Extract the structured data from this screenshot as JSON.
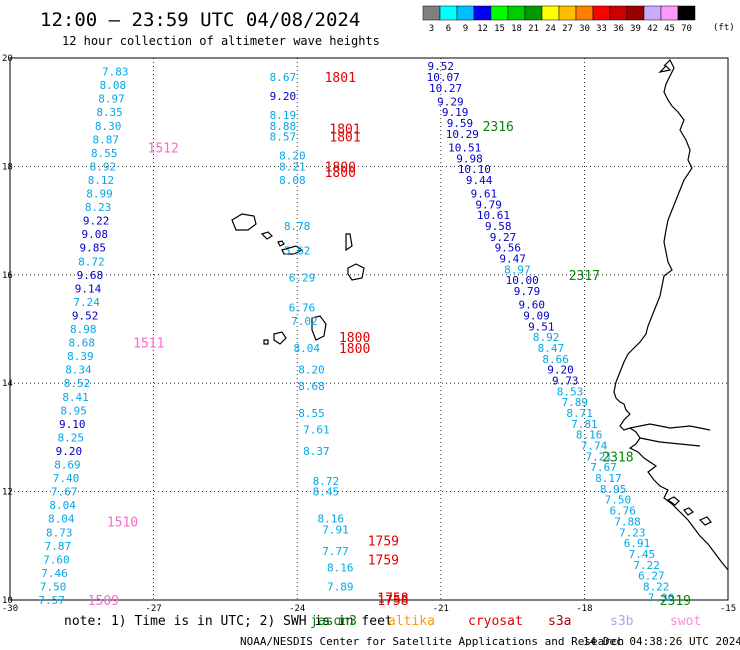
{
  "header": {
    "title": "12:00 – 23:59 UTC 04/08/2024",
    "subtitle": "12 hour collection of altimeter wave heights"
  },
  "colorbar": {
    "colors": [
      "#808080",
      "#00ffff",
      "#00bfff",
      "#0000ff",
      "#00ff00",
      "#00cc00",
      "#009900",
      "#ffff00",
      "#ffbf00",
      "#ff8000",
      "#ff0000",
      "#cc0000",
      "#990000",
      "#ccaaff",
      "#ff99ff",
      "#000000"
    ],
    "labels": [
      "3",
      "6",
      "9",
      "12",
      "15",
      "18",
      "21",
      "24",
      "27",
      "30",
      "33",
      "36",
      "39",
      "42",
      "45",
      "70"
    ],
    "unit": "(ft)"
  },
  "axes": {
    "lon_labels": [
      "-30",
      "-27",
      "-24",
      "-21",
      "-18",
      "-15"
    ],
    "lat_labels": [
      "20",
      "18",
      "16",
      "14",
      "12",
      "10"
    ]
  },
  "colors": {
    "cyan": "#00a8e8",
    "blue": "#0000c8",
    "red": "#e00000",
    "green": "#008800",
    "pink": "#ff66cc"
  },
  "chart_data": {
    "type": "scatter",
    "x_label": "longitude",
    "y_label": "latitude",
    "xlim": [
      -30,
      -15
    ],
    "ylim": [
      10,
      20
    ],
    "grid": true,
    "labels": [
      {
        "lon": -27.8,
        "lat": 19.75,
        "t": "7.83",
        "c": "cyan"
      },
      {
        "lon": -27.85,
        "lat": 19.5,
        "t": "8.08",
        "c": "cyan"
      },
      {
        "lon": -27.88,
        "lat": 19.25,
        "t": "8.97",
        "c": "cyan"
      },
      {
        "lon": -27.92,
        "lat": 19.0,
        "t": "8.35",
        "c": "cyan"
      },
      {
        "lon": -27.95,
        "lat": 18.75,
        "t": "8.30",
        "c": "cyan"
      },
      {
        "lon": -28.0,
        "lat": 18.5,
        "t": "8.87",
        "c": "cyan"
      },
      {
        "lon": -28.03,
        "lat": 18.25,
        "t": "8.55",
        "c": "cyan"
      },
      {
        "lon": -28.06,
        "lat": 18.0,
        "t": "8.92",
        "c": "cyan"
      },
      {
        "lon": -28.1,
        "lat": 17.75,
        "t": "8.12",
        "c": "cyan"
      },
      {
        "lon": -28.13,
        "lat": 17.5,
        "t": "8.99",
        "c": "cyan"
      },
      {
        "lon": -28.16,
        "lat": 17.25,
        "t": "8.23",
        "c": "cyan"
      },
      {
        "lon": -28.2,
        "lat": 17.0,
        "t": "9.22",
        "c": "blue"
      },
      {
        "lon": -28.23,
        "lat": 16.75,
        "t": "9.08",
        "c": "blue"
      },
      {
        "lon": -28.27,
        "lat": 16.5,
        "t": "9.85",
        "c": "blue"
      },
      {
        "lon": -28.3,
        "lat": 16.25,
        "t": "8.72",
        "c": "cyan"
      },
      {
        "lon": -28.33,
        "lat": 16.0,
        "t": "9.68",
        "c": "blue"
      },
      {
        "lon": -28.37,
        "lat": 15.75,
        "t": "9.14",
        "c": "blue"
      },
      {
        "lon": -28.4,
        "lat": 15.5,
        "t": "7.24",
        "c": "cyan"
      },
      {
        "lon": -28.43,
        "lat": 15.25,
        "t": "9.52",
        "c": "blue"
      },
      {
        "lon": -28.47,
        "lat": 15.0,
        "t": "8.98",
        "c": "cyan"
      },
      {
        "lon": -28.5,
        "lat": 14.75,
        "t": "8.68",
        "c": "cyan"
      },
      {
        "lon": -28.53,
        "lat": 14.5,
        "t": "8.39",
        "c": "cyan"
      },
      {
        "lon": -28.57,
        "lat": 14.25,
        "t": "8.34",
        "c": "cyan"
      },
      {
        "lon": -28.6,
        "lat": 14.0,
        "t": "8.52",
        "c": "cyan"
      },
      {
        "lon": -28.63,
        "lat": 13.75,
        "t": "8.41",
        "c": "cyan"
      },
      {
        "lon": -28.67,
        "lat": 13.5,
        "t": "8.95",
        "c": "cyan"
      },
      {
        "lon": -28.7,
        "lat": 13.25,
        "t": "9.10",
        "c": "blue"
      },
      {
        "lon": -28.73,
        "lat": 13.0,
        "t": "8.25",
        "c": "cyan"
      },
      {
        "lon": -28.77,
        "lat": 12.75,
        "t": "9.20",
        "c": "blue"
      },
      {
        "lon": -28.8,
        "lat": 12.5,
        "t": "8.69",
        "c": "cyan"
      },
      {
        "lon": -28.83,
        "lat": 12.25,
        "t": "7.40",
        "c": "cyan"
      },
      {
        "lon": -28.87,
        "lat": 12.0,
        "t": "7.67",
        "c": "cyan"
      },
      {
        "lon": -28.9,
        "lat": 11.75,
        "t": "8.04",
        "c": "cyan"
      },
      {
        "lon": -28.93,
        "lat": 11.5,
        "t": "8.04",
        "c": "cyan"
      },
      {
        "lon": -28.97,
        "lat": 11.25,
        "t": "8.73",
        "c": "cyan"
      },
      {
        "lon": -29.0,
        "lat": 11.0,
        "t": "7.87",
        "c": "cyan"
      },
      {
        "lon": -29.03,
        "lat": 10.75,
        "t": "7.60",
        "c": "cyan"
      },
      {
        "lon": -29.07,
        "lat": 10.5,
        "t": "7.46",
        "c": "cyan"
      },
      {
        "lon": -29.1,
        "lat": 10.25,
        "t": "7.50",
        "c": "cyan"
      },
      {
        "lon": -29.13,
        "lat": 10.0,
        "t": "7.57",
        "c": "cyan"
      },
      {
        "lon": -24.3,
        "lat": 19.65,
        "t": "8.67",
        "c": "cyan"
      },
      {
        "lon": -24.3,
        "lat": 19.3,
        "t": "9.20",
        "c": "blue"
      },
      {
        "lon": -24.3,
        "lat": 18.95,
        "t": "8.19",
        "c": "cyan"
      },
      {
        "lon": -24.3,
        "lat": 18.75,
        "t": "8.88",
        "c": "cyan"
      },
      {
        "lon": -24.3,
        "lat": 18.55,
        "t": "8.57",
        "c": "cyan"
      },
      {
        "lon": -24.1,
        "lat": 18.2,
        "t": "8.20",
        "c": "cyan"
      },
      {
        "lon": -24.1,
        "lat": 18.0,
        "t": "8.21",
        "c": "cyan"
      },
      {
        "lon": -24.1,
        "lat": 17.75,
        "t": "8.08",
        "c": "cyan"
      },
      {
        "lon": -24.0,
        "lat": 16.9,
        "t": "8.78",
        "c": "cyan"
      },
      {
        "lon": -24.0,
        "lat": 16.45,
        "t": "5.62",
        "c": "cyan"
      },
      {
        "lon": -23.9,
        "lat": 15.95,
        "t": "6.29",
        "c": "cyan"
      },
      {
        "lon": -23.9,
        "lat": 15.4,
        "t": "6.76",
        "c": "cyan"
      },
      {
        "lon": -23.85,
        "lat": 15.15,
        "t": "7.02",
        "c": "cyan"
      },
      {
        "lon": -23.8,
        "lat": 14.65,
        "t": "8.04",
        "c": "cyan"
      },
      {
        "lon": -23.7,
        "lat": 14.25,
        "t": "8.20",
        "c": "cyan"
      },
      {
        "lon": -23.7,
        "lat": 13.95,
        "t": "8.68",
        "c": "cyan"
      },
      {
        "lon": -23.7,
        "lat": 13.45,
        "t": "8.55",
        "c": "cyan"
      },
      {
        "lon": -23.6,
        "lat": 13.15,
        "t": "7.61",
        "c": "cyan"
      },
      {
        "lon": -23.6,
        "lat": 12.75,
        "t": "8.37",
        "c": "cyan"
      },
      {
        "lon": -23.4,
        "lat": 12.2,
        "t": "8.72",
        "c": "cyan"
      },
      {
        "lon": -23.4,
        "lat": 12.0,
        "t": "8.45",
        "c": "cyan"
      },
      {
        "lon": -23.3,
        "lat": 11.5,
        "t": "8.16",
        "c": "cyan"
      },
      {
        "lon": -23.2,
        "lat": 11.3,
        "t": "7.91",
        "c": "cyan"
      },
      {
        "lon": -23.2,
        "lat": 10.9,
        "t": "7.77",
        "c": "cyan"
      },
      {
        "lon": -23.1,
        "lat": 10.6,
        "t": "8.16",
        "c": "cyan"
      },
      {
        "lon": -23.1,
        "lat": 10.25,
        "t": "7.89",
        "c": "cyan"
      },
      {
        "lon": -21.0,
        "lat": 19.85,
        "t": "9.52",
        "c": "blue"
      },
      {
        "lon": -20.95,
        "lat": 19.65,
        "t": "10.07",
        "c": "blue"
      },
      {
        "lon": -20.9,
        "lat": 19.45,
        "t": "10.27",
        "c": "blue"
      },
      {
        "lon": -20.8,
        "lat": 19.2,
        "t": "9.29",
        "c": "blue"
      },
      {
        "lon": -20.7,
        "lat": 19.0,
        "t": "9.19",
        "c": "blue"
      },
      {
        "lon": -20.6,
        "lat": 18.8,
        "t": "9.59",
        "c": "blue"
      },
      {
        "lon": -20.55,
        "lat": 18.6,
        "t": "10.29",
        "c": "blue"
      },
      {
        "lon": -20.5,
        "lat": 18.35,
        "t": "10.51",
        "c": "blue"
      },
      {
        "lon": -20.4,
        "lat": 18.15,
        "t": "9.98",
        "c": "blue"
      },
      {
        "lon": -20.3,
        "lat": 17.95,
        "t": "10.10",
        "c": "blue"
      },
      {
        "lon": -20.2,
        "lat": 17.75,
        "t": "9.44",
        "c": "blue"
      },
      {
        "lon": -20.1,
        "lat": 17.5,
        "t": "9.61",
        "c": "blue"
      },
      {
        "lon": -20.0,
        "lat": 17.3,
        "t": "9.79",
        "c": "blue"
      },
      {
        "lon": -19.9,
        "lat": 17.1,
        "t": "10.61",
        "c": "blue"
      },
      {
        "lon": -19.8,
        "lat": 16.9,
        "t": "9.58",
        "c": "blue"
      },
      {
        "lon": -19.7,
        "lat": 16.7,
        "t": "9.27",
        "c": "blue"
      },
      {
        "lon": -19.6,
        "lat": 16.5,
        "t": "9.56",
        "c": "blue"
      },
      {
        "lon": -19.5,
        "lat": 16.3,
        "t": "9.47",
        "c": "blue"
      },
      {
        "lon": -19.4,
        "lat": 16.1,
        "t": "8.97",
        "c": "cyan"
      },
      {
        "lon": -19.3,
        "lat": 15.9,
        "t": "10.00",
        "c": "blue"
      },
      {
        "lon": -19.2,
        "lat": 15.7,
        "t": "9.79",
        "c": "blue"
      },
      {
        "lon": -19.1,
        "lat": 15.45,
        "t": "9.60",
        "c": "blue"
      },
      {
        "lon": -19.0,
        "lat": 15.25,
        "t": "9.09",
        "c": "blue"
      },
      {
        "lon": -18.9,
        "lat": 15.05,
        "t": "9.51",
        "c": "blue"
      },
      {
        "lon": -18.8,
        "lat": 14.85,
        "t": "8.92",
        "c": "cyan"
      },
      {
        "lon": -18.7,
        "lat": 14.65,
        "t": "8.47",
        "c": "cyan"
      },
      {
        "lon": -18.6,
        "lat": 14.45,
        "t": "8.66",
        "c": "cyan"
      },
      {
        "lon": -18.5,
        "lat": 14.25,
        "t": "9.20",
        "c": "blue"
      },
      {
        "lon": -18.4,
        "lat": 14.05,
        "t": "9.73",
        "c": "blue"
      },
      {
        "lon": -18.3,
        "lat": 13.85,
        "t": "8.53",
        "c": "cyan"
      },
      {
        "lon": -18.2,
        "lat": 13.65,
        "t": "7.89",
        "c": "cyan"
      },
      {
        "lon": -18.1,
        "lat": 13.45,
        "t": "8.71",
        "c": "cyan"
      },
      {
        "lon": -18.0,
        "lat": 13.25,
        "t": "7.81",
        "c": "cyan"
      },
      {
        "lon": -17.9,
        "lat": 13.05,
        "t": "8.16",
        "c": "cyan"
      },
      {
        "lon": -17.8,
        "lat": 12.85,
        "t": "7.74",
        "c": "cyan"
      },
      {
        "lon": -17.7,
        "lat": 12.65,
        "t": "7.21",
        "c": "cyan"
      },
      {
        "lon": -17.6,
        "lat": 12.45,
        "t": "7.67",
        "c": "cyan"
      },
      {
        "lon": -17.5,
        "lat": 12.25,
        "t": "8.17",
        "c": "cyan"
      },
      {
        "lon": -17.4,
        "lat": 12.05,
        "t": "8.95",
        "c": "cyan"
      },
      {
        "lon": -17.3,
        "lat": 11.85,
        "t": "7.50",
        "c": "cyan"
      },
      {
        "lon": -17.2,
        "lat": 11.65,
        "t": "6.76",
        "c": "cyan"
      },
      {
        "lon": -17.1,
        "lat": 11.45,
        "t": "7.88",
        "c": "cyan"
      },
      {
        "lon": -17.0,
        "lat": 11.25,
        "t": "7.23",
        "c": "cyan"
      },
      {
        "lon": -16.9,
        "lat": 11.05,
        "t": "6.91",
        "c": "cyan"
      },
      {
        "lon": -16.8,
        "lat": 10.85,
        "t": "7.45",
        "c": "cyan"
      },
      {
        "lon": -16.7,
        "lat": 10.65,
        "t": "7.22",
        "c": "cyan"
      },
      {
        "lon": -16.6,
        "lat": 10.45,
        "t": "6.27",
        "c": "cyan"
      },
      {
        "lon": -16.5,
        "lat": 10.25,
        "t": "8.22",
        "c": "cyan"
      },
      {
        "lon": -16.4,
        "lat": 10.05,
        "t": "7.36",
        "c": "cyan"
      }
    ],
    "time_labels": [
      {
        "lon": -23.1,
        "lat": 19.65,
        "t": "1801",
        "c": "red"
      },
      {
        "lon": -23.0,
        "lat": 18.7,
        "t": "1801",
        "c": "red"
      },
      {
        "lon": -23.0,
        "lat": 18.55,
        "t": "1801",
        "c": "red"
      },
      {
        "lon": -23.1,
        "lat": 18.0,
        "t": "1800",
        "c": "red"
      },
      {
        "lon": -23.1,
        "lat": 17.9,
        "t": "1800",
        "c": "red"
      },
      {
        "lon": -22.8,
        "lat": 14.85,
        "t": "1800",
        "c": "red"
      },
      {
        "lon": -22.8,
        "lat": 14.65,
        "t": "1800",
        "c": "red"
      },
      {
        "lon": -22.2,
        "lat": 11.1,
        "t": "1759",
        "c": "red"
      },
      {
        "lon": -22.2,
        "lat": 10.75,
        "t": "1759",
        "c": "red"
      },
      {
        "lon": -22.0,
        "lat": 10.05,
        "t": "1758",
        "c": "red"
      },
      {
        "lon": -22.0,
        "lat": 10.0,
        "t": "1758",
        "c": "red"
      },
      {
        "lon": -19.8,
        "lat": 18.75,
        "t": "2316",
        "c": "green"
      },
      {
        "lon": -18.0,
        "lat": 16.0,
        "t": "2317",
        "c": "green"
      },
      {
        "lon": -17.3,
        "lat": 12.65,
        "t": "2318",
        "c": "green"
      },
      {
        "lon": -16.1,
        "lat": 10.0,
        "t": "2319",
        "c": "green"
      },
      {
        "lon": -26.8,
        "lat": 18.35,
        "t": "1512",
        "c": "pink"
      },
      {
        "lon": -27.1,
        "lat": 14.75,
        "t": "1511",
        "c": "pink"
      },
      {
        "lon": -27.65,
        "lat": 11.45,
        "t": "1510",
        "c": "pink"
      },
      {
        "lon": -28.05,
        "lat": 10.0,
        "t": "1509",
        "c": "pink"
      }
    ]
  },
  "footer": {
    "note": "note: 1) Time is in UTC; 2) SWH is in feet",
    "sats": [
      {
        "name": "jason3",
        "color": "#008800"
      },
      {
        "name": "altika",
        "color": "#ff9900"
      },
      {
        "name": "cryosat",
        "color": "#e00000"
      },
      {
        "name": "s3a",
        "color": "#aa0000"
      },
      {
        "name": "s3b",
        "color": "#bb99ff"
      },
      {
        "name": "swot",
        "color": "#ff88dd"
      }
    ],
    "credit": "NOAA/NESDIS Center for Satellite Applications and Research",
    "timestamp": "14 Dec 04:38:26 UTC 2024"
  }
}
